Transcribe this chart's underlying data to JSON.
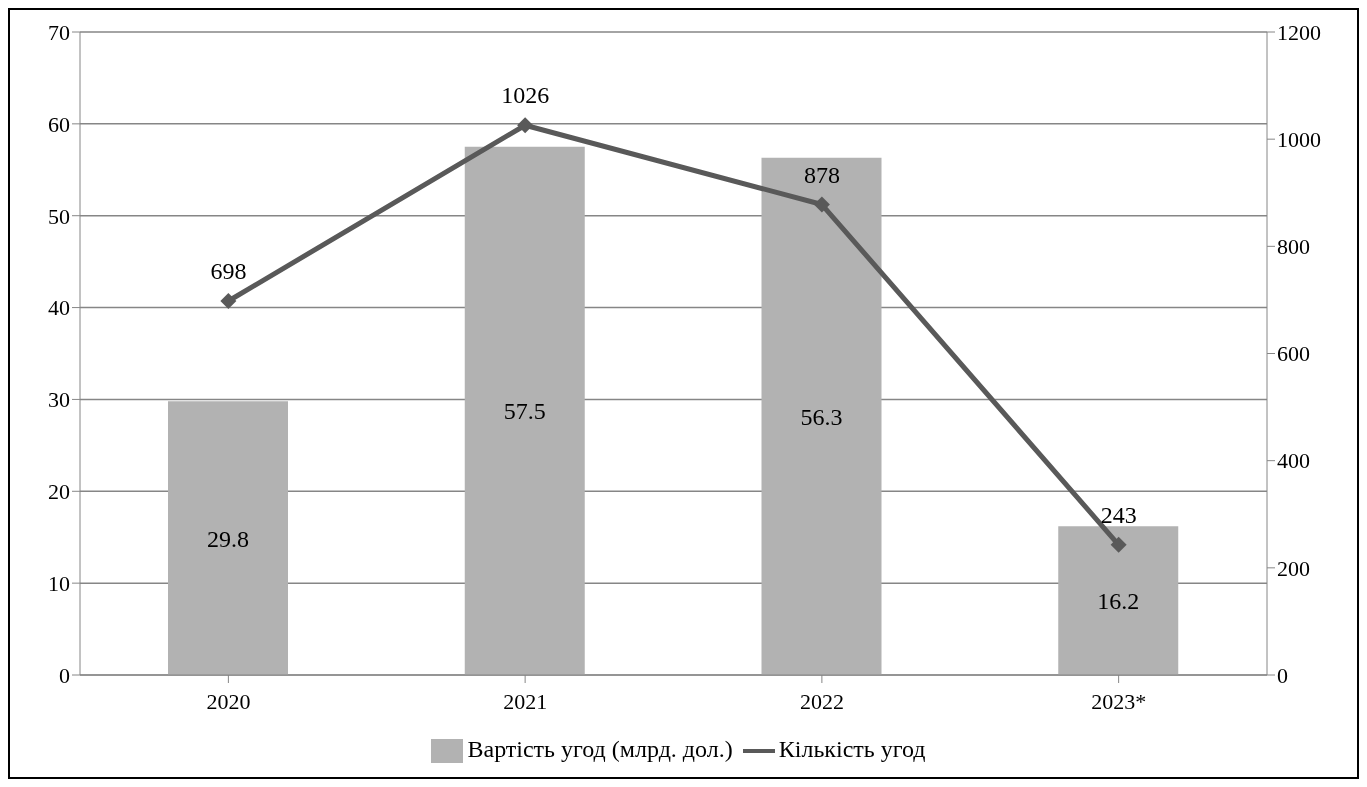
{
  "chart_data": {
    "type": "bar",
    "categories": [
      "2020",
      "2021",
      "2022",
      "2023*"
    ],
    "series": [
      {
        "name": "Вартість угод (млрд. дол.)",
        "color": "#b2b2b2",
        "values": [
          29.8,
          57.5,
          56.3,
          16.2
        ]
      },
      {
        "name": "Кількість угод",
        "type": "line",
        "axis": "y2",
        "color": "#595959",
        "values": [
          698,
          1026,
          878,
          243
        ]
      }
    ],
    "ylim": [
      0,
      70
    ],
    "yticks": [
      0,
      10,
      20,
      30,
      40,
      50,
      60,
      70
    ],
    "y2lim": [
      0,
      1200
    ],
    "y2ticks": [
      0,
      200,
      400,
      600,
      800,
      1000,
      1200
    ],
    "grid": "y",
    "legend": "bottom",
    "marker": "diamond",
    "data_labels": true
  }
}
